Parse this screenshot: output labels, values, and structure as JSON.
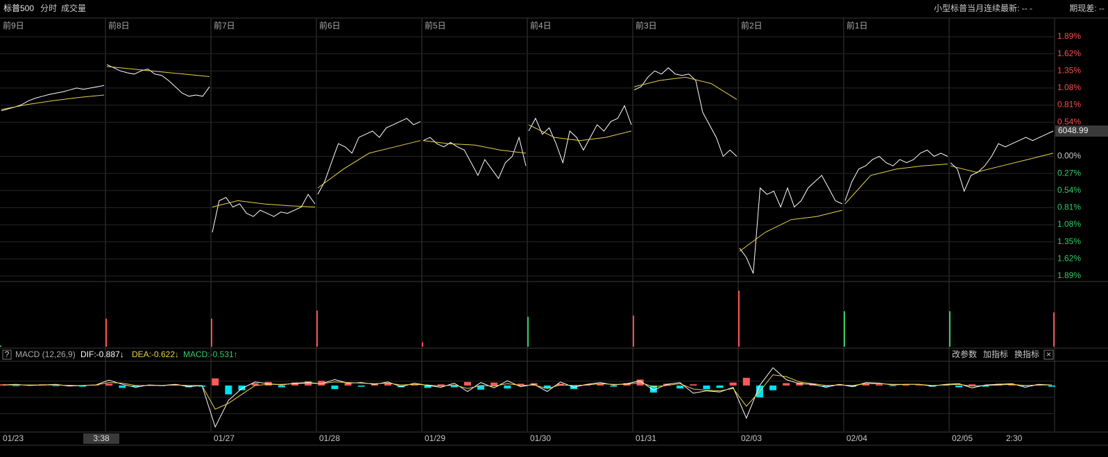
{
  "header": {
    "symbol": "标普500",
    "tabs": [
      "分时",
      "成交量"
    ],
    "right": [
      "小型标普当月连续最新: -- -",
      "期现差: --"
    ]
  },
  "macd_header": {
    "help": "?",
    "name": "MACD (12,26,9)",
    "dif": "DIF:-0.887↓",
    "dea": "DEA:-0.622↓",
    "macd": "MACD:-0.531↑",
    "buttons": [
      "改参数",
      "加指标",
      "换指标",
      "×"
    ]
  },
  "time_axis": {
    "labels": [
      "01/23",
      null,
      "01/27",
      "01/28",
      "01/29",
      "01/30",
      "01/31",
      "02/03",
      "02/04",
      "02/05"
    ],
    "cursor": "3:38",
    "end_label": "2:30"
  },
  "chart_data": [
    {
      "type": "line",
      "day_labels": [
        "前9日",
        "前8日",
        "前7日",
        "前6日",
        "前5日",
        "前4日",
        "前3日",
        "前2日",
        "前1日",
        null
      ],
      "series": [
        {
          "color": "#ffffff",
          "values": [
            0.72,
            0.75,
            0.78,
            0.82,
            0.88,
            0.92,
            0.95,
            0.98,
            1.0,
            1.02,
            1.05,
            1.08,
            1.06,
            1.08,
            1.1,
            1.12,
            null,
            1.45,
            1.4,
            1.35,
            1.32,
            1.3,
            1.35,
            1.38,
            1.3,
            1.28,
            1.2,
            1.1,
            1.0,
            0.95,
            0.97,
            0.95,
            1.1,
            null,
            -1.2,
            -0.7,
            -0.65,
            -0.8,
            -0.75,
            -0.9,
            -0.95,
            -0.85,
            -0.9,
            -0.95,
            -0.88,
            -0.9,
            -0.85,
            -0.8,
            -0.6,
            -0.75,
            null,
            -0.6,
            -0.4,
            -0.1,
            0.2,
            0.15,
            0.05,
            0.3,
            0.35,
            0.4,
            0.3,
            0.45,
            0.5,
            0.55,
            0.6,
            0.5,
            0.55,
            null,
            0.25,
            0.3,
            0.2,
            0.15,
            0.22,
            0.15,
            0.1,
            -0.1,
            -0.3,
            -0.05,
            -0.2,
            -0.35,
            -0.1,
            0.0,
            0.3,
            -0.15,
            null,
            0.4,
            0.6,
            0.35,
            0.45,
            0.2,
            -0.1,
            0.4,
            0.3,
            0.1,
            0.3,
            0.5,
            0.4,
            0.55,
            0.6,
            0.8,
            0.5,
            null,
            1.05,
            1.1,
            1.25,
            1.35,
            1.3,
            1.4,
            1.3,
            1.28,
            1.3,
            1.2,
            0.7,
            0.5,
            0.3,
            0.0,
            0.1,
            0.0,
            null,
            -1.45,
            -1.6,
            -1.85,
            -0.5,
            -0.6,
            -0.55,
            -0.8,
            -0.5,
            -0.8,
            -0.7,
            -0.5,
            -0.4,
            -0.3,
            -0.5,
            -0.7,
            -0.75,
            null,
            -0.7,
            -0.4,
            -0.2,
            -0.15,
            -0.05,
            0.0,
            -0.1,
            -0.15,
            -0.05,
            -0.1,
            -0.05,
            0.05,
            0.1,
            0.0,
            0.05,
            0.0,
            null,
            -0.1,
            -0.2,
            -0.55,
            -0.3,
            -0.25,
            -0.15,
            0.0,
            0.2,
            0.15,
            0.2,
            0.25,
            0.3,
            0.25,
            0.3,
            0.35,
            0.4
          ]
        },
        {
          "color": "#e8d44d",
          "values": [
            0.74,
            0.82,
            0.88,
            0.93,
            0.97,
            null,
            1.42,
            1.38,
            1.34,
            1.3,
            1.26,
            null,
            -0.8,
            -0.7,
            -0.75,
            -0.78,
            -0.8,
            null,
            -0.5,
            -0.2,
            0.05,
            0.15,
            0.25,
            null,
            0.25,
            0.2,
            0.18,
            0.1,
            0.05,
            null,
            0.5,
            0.3,
            0.25,
            0.3,
            0.4,
            null,
            1.1,
            1.2,
            1.25,
            1.15,
            0.9,
            null,
            -1.5,
            -1.2,
            -1.0,
            -0.95,
            -0.85,
            null,
            -0.75,
            -0.3,
            -0.2,
            -0.15,
            -0.12,
            null,
            -0.15,
            -0.25,
            -0.15,
            -0.05,
            0.05
          ]
        }
      ],
      "ylim": [
        -1.89,
        1.89
      ],
      "yticks": [
        {
          "value": 1.89,
          "label": "1.89%"
        },
        {
          "value": 1.62,
          "label": "1.62%"
        },
        {
          "value": 1.35,
          "label": "1.35%"
        },
        {
          "value": 1.08,
          "label": "1.08%"
        },
        {
          "value": 0.81,
          "label": "0.81%"
        },
        {
          "value": 0.54,
          "label": "0.54%"
        },
        {
          "value": 0,
          "label": "0.00%"
        },
        {
          "value": -0.27,
          "label": "0.27%"
        },
        {
          "value": -0.54,
          "label": "0.54%"
        },
        {
          "value": -0.81,
          "label": "0.81%"
        },
        {
          "value": -1.08,
          "label": "1.08%"
        },
        {
          "value": -1.35,
          "label": "1.35%"
        },
        {
          "value": -1.62,
          "label": "1.62%"
        },
        {
          "value": -1.89,
          "label": "1.89%"
        }
      ],
      "up_color": "#ff4d4d",
      "down_color": "#33cc66",
      "zero_color": "#cccccc",
      "last_price": 6048.99,
      "grid": true
    },
    {
      "type": "bar",
      "values": [
        2,
        45,
        45,
        58,
        7,
        48,
        50,
        90,
        57,
        57,
        55
      ],
      "colors": [
        "#33cc66",
        "#ff4d4d",
        "#ff4d4d",
        "#ff4d4d",
        "#ff4d4d",
        "#33cc66",
        "#ff4d4d",
        "#ff4d4d",
        "#33cc66",
        "#33cc66",
        "#ff4d4d"
      ],
      "ylim": [
        0,
        100
      ]
    },
    {
      "type": "macd",
      "histogram": [
        0.2,
        -0.1,
        0.1,
        0.2,
        -0.1,
        0.1,
        -0.2,
        0.1,
        0.3,
        -0.4,
        -0.2,
        0.1,
        -0.1,
        0.2,
        -0.3,
        -0.2,
        1.2,
        -1.5,
        -0.8,
        0.4,
        0.6,
        -0.3,
        0.5,
        0.7,
        0.8,
        -0.6,
        0.5,
        -0.2,
        0.3,
        0.4,
        -0.3,
        0.2,
        -0.4,
        0.2,
        -0.3,
        0.6,
        -0.7,
        0.5,
        -0.5,
        0.3,
        0.4,
        -0.5,
        0.3,
        -0.6,
        0.2,
        0.3,
        -0.2,
        0.4,
        1.0,
        -1.2,
        0.3,
        -0.5,
        0.2,
        -0.6,
        -0.4,
        0.5,
        1.3,
        -2.0,
        -0.8,
        0.4,
        0.5,
        0.3,
        -0.2,
        0.2,
        -0.2,
        0.3,
        0.2,
        -0.1,
        0.2,
        0.1,
        -0.2,
        0.1,
        -0.3,
        0.2,
        -0.2,
        0.3,
        0.2,
        -0.1,
        0.2,
        -0.2
      ],
      "series": [
        {
          "color": "#ffffff",
          "values": [
            0.1,
            0.2,
            0.0,
            0.1,
            0.2,
            -0.1,
            0.0,
            0.1,
            0.9,
            0.2,
            -0.3,
            0.1,
            0.0,
            0.2,
            -0.2,
            0.0,
            -7.0,
            -2.5,
            -0.5,
            0.6,
            0.3,
            0.1,
            0.4,
            0.5,
            0.3,
            1.0,
            0.4,
            0.5,
            0.2,
            0.6,
            -0.2,
            0.4,
            0.0,
            -0.3,
            0.4,
            -1.0,
            0.5,
            -0.4,
            0.8,
            -0.2,
            0.2,
            -1.0,
            0.6,
            -0.3,
            0.2,
            0.5,
            0.1,
            0.3,
            0.8,
            -0.8,
            0.2,
            0.5,
            -1.3,
            -0.9,
            -1.1,
            -0.3,
            -5.5,
            0.0,
            3.0,
            1.0,
            0.3,
            0.2,
            -0.3,
            0.2,
            -0.2,
            0.5,
            0.4,
            0.1,
            0.2,
            0.2,
            -0.1,
            0.2,
            0.3,
            -0.4,
            0.1,
            0.2,
            0.3,
            -0.3,
            0.2,
            0.1
          ]
        },
        {
          "color": "#e8d44d",
          "values": [
            0.1,
            0.1,
            0.1,
            0.1,
            0.1,
            0.0,
            0.0,
            0.1,
            0.5,
            0.4,
            0.0,
            0.0,
            0.0,
            0.1,
            0.0,
            0.0,
            -4.0,
            -3.0,
            -1.5,
            0.0,
            0.2,
            0.2,
            0.3,
            0.4,
            0.3,
            0.6,
            0.5,
            0.4,
            0.3,
            0.4,
            0.1,
            0.2,
            0.1,
            -0.1,
            0.1,
            -0.5,
            0.0,
            -0.1,
            0.3,
            0.0,
            0.1,
            -0.5,
            0.1,
            0.0,
            0.1,
            0.3,
            0.2,
            0.2,
            0.5,
            -0.2,
            0.0,
            0.3,
            -0.6,
            -0.8,
            -0.9,
            -0.5,
            -3.5,
            -1.0,
            1.8,
            1.5,
            0.6,
            0.3,
            0.0,
            0.1,
            0.0,
            0.3,
            0.3,
            0.2,
            0.2,
            0.2,
            0.0,
            0.1,
            0.2,
            -0.1,
            0.0,
            0.1,
            0.2,
            0.0,
            0.1,
            0.1
          ]
        }
      ],
      "up_color": "#ff5a5a",
      "down_color": "#00e0f0",
      "ylim": [
        -7.5,
        3.5
      ]
    }
  ]
}
